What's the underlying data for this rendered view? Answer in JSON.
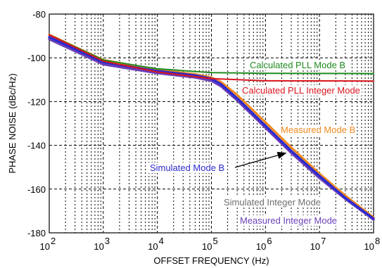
{
  "chart_data": {
    "type": "line",
    "xlabel": "OFFSET FREQUENCY (Hz)",
    "ylabel": "PHASE NOISE (dBc/Hz)",
    "xscale": "log",
    "xlim": [
      100,
      100000000
    ],
    "ylim": [
      -180,
      -80
    ],
    "x_ticks": [
      {
        "value": 100,
        "base": "10",
        "exp": "2"
      },
      {
        "value": 1000,
        "base": "10",
        "exp": "3"
      },
      {
        "value": 10000,
        "base": "10",
        "exp": "4"
      },
      {
        "value": 100000,
        "base": "10",
        "exp": "5"
      },
      {
        "value": 1000000,
        "base": "10",
        "exp": "6"
      },
      {
        "value": 10000000,
        "base": "10",
        "exp": "7"
      },
      {
        "value": 100000000,
        "base": "10",
        "exp": "8"
      }
    ],
    "y_ticks": [
      {
        "value": -80,
        "label": "-80"
      },
      {
        "value": -100,
        "label": "-100"
      },
      {
        "value": -120,
        "label": "-120"
      },
      {
        "value": -140,
        "label": "-140"
      },
      {
        "value": -160,
        "label": "-160"
      },
      {
        "value": -180,
        "label": "-180"
      }
    ],
    "grid": true,
    "series": [
      {
        "name": "Calculated PLL Mode B",
        "color": "#1f8a1f",
        "x": [
          100,
          1000,
          10000,
          100000,
          1000000,
          100000000
        ],
        "y": [
          -89.5,
          -101,
          -105,
          -106.8,
          -107.1,
          -107.2
        ]
      },
      {
        "name": "Calculated PLL Integer Mode",
        "color": "#d8141e",
        "x": [
          100,
          1000,
          10000,
          100000,
          1000000,
          100000000
        ],
        "y": [
          -89.5,
          -101.5,
          -106.5,
          -109.5,
          -110.5,
          -110.6
        ]
      },
      {
        "name": "Simulated Integer Mode",
        "color": "#6e6e6e",
        "x": [
          100,
          1000,
          10000,
          50000,
          100000,
          150000,
          300000,
          1000000,
          3000000,
          10000000,
          30000000,
          100000000
        ],
        "y": [
          -91,
          -102.5,
          -106.5,
          -108.5,
          -110,
          -112.5,
          -119,
          -131.5,
          -143,
          -154.5,
          -164,
          -173.5
        ]
      },
      {
        "name": "Measured Integer Mode",
        "color": "#6a3fb8",
        "x": [
          100,
          1000,
          10000,
          50000,
          100000,
          150000,
          300000,
          1000000,
          3000000,
          10000000,
          30000000,
          100000000
        ],
        "y": [
          -91.5,
          -103,
          -107,
          -109,
          -110.5,
          -113,
          -119.5,
          -132,
          -143.5,
          -155,
          -164.5,
          -174
        ]
      },
      {
        "name": "Measured Mode B",
        "color": "#f08a1e",
        "x": [
          100,
          1000,
          10000,
          50000,
          100000,
          150000,
          300000,
          1000000,
          3000000,
          10000000,
          30000000,
          100000000
        ],
        "y": [
          -89.5,
          -101,
          -105.5,
          -107.5,
          -109,
          -111,
          -117,
          -129.5,
          -141,
          -153,
          -163,
          -173
        ]
      },
      {
        "name": "Simulated Mode B",
        "color": "#2a2ad0",
        "x": [
          100,
          1000,
          10000,
          50000,
          100000,
          150000,
          300000,
          1000000,
          3000000,
          10000000,
          30000000,
          100000000
        ],
        "y": [
          -90.5,
          -102,
          -106,
          -108,
          -109.5,
          -112,
          -118.5,
          -131,
          -142.5,
          -154,
          -164,
          -173.5
        ]
      }
    ],
    "annotations": [
      {
        "text": "Calculated PLL Mode B",
        "color": "#1f8a1f"
      },
      {
        "text": "Calculated PLL Integer Mode",
        "color": "#d8141e"
      },
      {
        "text": "Measured  Mode B",
        "color": "#f08a1e"
      },
      {
        "text": "Simulated Mode B",
        "color": "#2a2ad0"
      },
      {
        "text": "Simulated Integer Mode",
        "color": "#6e6e6e"
      },
      {
        "text": "Measured  Integer Mode",
        "color": "#6a3fb8"
      }
    ]
  }
}
